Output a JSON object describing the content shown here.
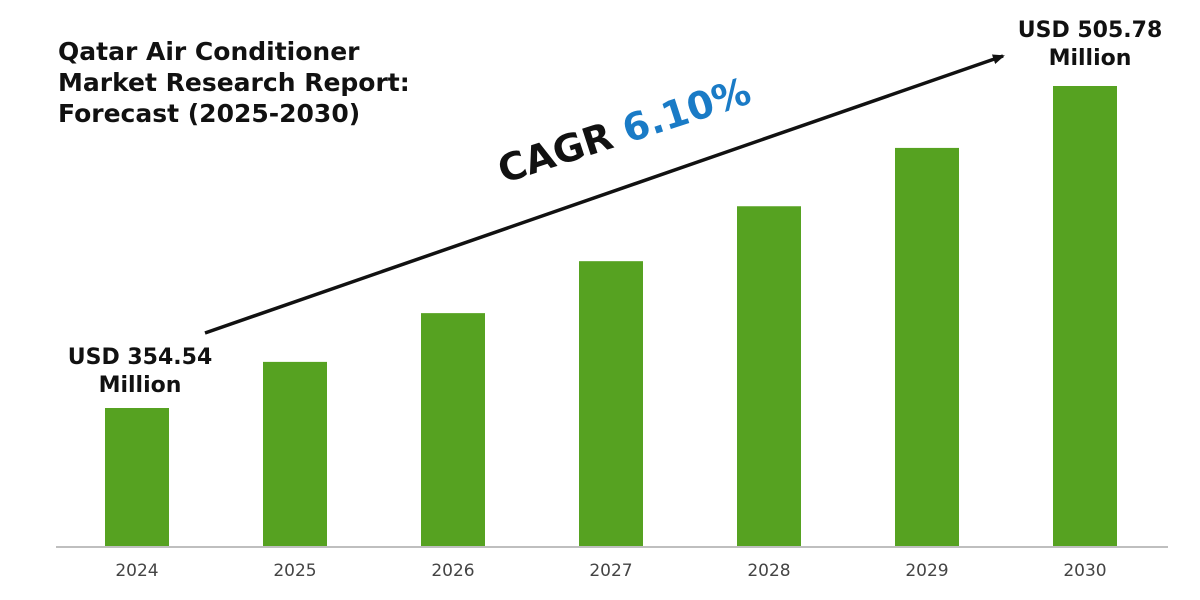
{
  "title_lines": [
    "Qatar Air Conditioner",
    "Market Research Report:",
    "Forecast (2025-2030)"
  ],
  "start_label": [
    "USD 354.54",
    "Million"
  ],
  "end_label": [
    "USD 505.78",
    "Million"
  ],
  "cagr": {
    "prefix": "CAGR",
    "value": "6.10%"
  },
  "colors": {
    "bar": "#56a221",
    "cagr_value": "#1a7bc6",
    "text": "#111111",
    "axis": "#bfbfbf"
  },
  "chart_data": {
    "type": "bar",
    "categories": [
      "2024",
      "2025",
      "2026",
      "2027",
      "2028",
      "2029",
      "2030"
    ],
    "values": [
      354.54,
      376.2,
      399.1,
      423.5,
      449.3,
      476.7,
      505.78
    ],
    "title": "Qatar Air Conditioner Market Research Report: Forecast (2025-2030)",
    "xlabel": "",
    "ylabel": "",
    "unit": "USD Million",
    "cagr": "6.10%",
    "grid": false,
    "legend": "none"
  }
}
